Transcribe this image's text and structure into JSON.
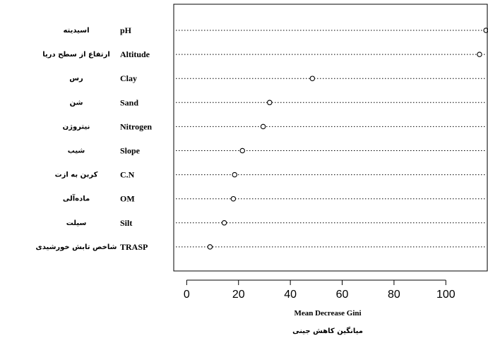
{
  "chart_data": {
    "type": "scatter",
    "variant": "dotchart",
    "xlabel": "Mean Decrease Gini",
    "xlabel_fa": "میانگین کاهش جینی",
    "xlim": [
      -5,
      116
    ],
    "xticks": [
      0,
      20,
      40,
      60,
      80,
      100
    ],
    "grid": false,
    "legend": "none",
    "colors": {
      "line": "#000000",
      "point_fill": "#ffffff"
    },
    "variables": [
      {
        "name": "pH",
        "name_fa": "اسیدیته",
        "value": 115.5
      },
      {
        "name": "Altitude",
        "name_fa": "ارتفاع از سطح دریا",
        "value": 113.0
      },
      {
        "name": "Clay",
        "name_fa": "رس",
        "value": 48.5
      },
      {
        "name": "Sand",
        "name_fa": "شن",
        "value": 32.0
      },
      {
        "name": "Nitrogen",
        "name_fa": "نیتروژن",
        "value": 29.5
      },
      {
        "name": "Slope",
        "name_fa": "شیب",
        "value": 21.5
      },
      {
        "name": "C.N",
        "name_fa": "کربن به ازت",
        "value": 18.5
      },
      {
        "name": "OM",
        "name_fa": "ماده‌آلی",
        "value": 18.0
      },
      {
        "name": "Silt",
        "name_fa": "سیلت",
        "value": 14.5
      },
      {
        "name": "TRASP",
        "name_fa": "شاخص تابش خورشیدی",
        "value": 9.0
      }
    ]
  }
}
